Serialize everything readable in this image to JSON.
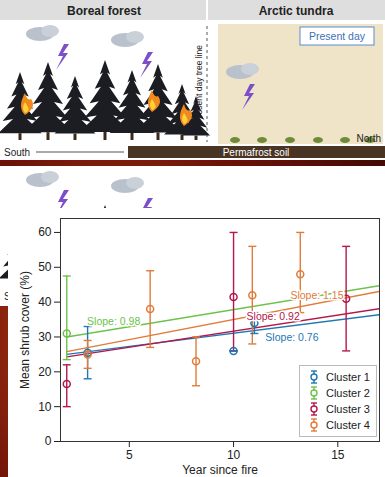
{
  "diagram": {
    "top_panel": {
      "headers": [
        "Boreal forest",
        "Arctic tundra"
      ],
      "tree_line_label": "Present day tree line",
      "period_label": "Present day",
      "soil_label": "Permafrost soil",
      "left_label": "South",
      "right_label": "North"
    },
    "bottom_panel": {
      "left_label": "South"
    }
  },
  "chart_data": {
    "type": "scatter",
    "x_label": "Year since fire",
    "y_label": "Mean shrub cover (%)",
    "xlim": [
      1.7,
      17
    ],
    "xticks": [
      5,
      10,
      15
    ],
    "ylim": [
      0,
      64
    ],
    "yticks": [
      0,
      10,
      20,
      30,
      40,
      50,
      60
    ],
    "grid": false,
    "legend": "bottom-right",
    "marker": "circle",
    "series": [
      {
        "name": "Cluster 1",
        "color": "#1f77b4",
        "x": [
          3,
          10,
          11
        ],
        "values": [
          25.5,
          26,
          34
        ],
        "error_low": [
          18,
          26,
          31
        ],
        "error_high": [
          33,
          26,
          37
        ],
        "trend_x": [
          2,
          17
        ],
        "trend_values": [
          25.0,
          36.4
        ],
        "slope": 0.76,
        "slope_label": "Slope: 0.76",
        "line_style": "dashed"
      },
      {
        "name": "Cluster 2",
        "color": "#6cc24a",
        "x": [
          2
        ],
        "values": [
          31
        ],
        "error_low": [
          23.5
        ],
        "error_high": [
          47.5
        ],
        "trend_x": [
          2,
          17
        ],
        "trend_values": [
          30.0,
          44.7
        ],
        "slope": 0.98,
        "slope_label": "Slope: 0.98",
        "line_style": "dashed"
      },
      {
        "name": "Cluster 3",
        "color": "#b5174a",
        "x": [
          2,
          10,
          15.4
        ],
        "values": [
          16.5,
          41.5,
          41
        ],
        "error_low": [
          10,
          26,
          26
        ],
        "error_high": [
          22,
          60,
          56
        ],
        "trend_x": [
          2,
          17
        ],
        "trend_values": [
          24.3,
          38.1
        ],
        "slope": 0.92,
        "slope_label": "Slope: 0.92",
        "line_style": "dashed"
      },
      {
        "name": "Cluster 4",
        "color": "#e07b39",
        "x": [
          3,
          6,
          8.2,
          10.9,
          13.2
        ],
        "values": [
          25,
          38,
          23,
          42,
          48
        ],
        "error_low": [
          21,
          27,
          16,
          28,
          37
        ],
        "error_high": [
          29,
          49,
          30,
          56,
          60
        ],
        "trend_x": [
          2,
          17
        ],
        "trend_values": [
          25.8,
          43.1
        ],
        "slope": 1.15,
        "slope_label": "Slope: 1.15",
        "line_style": "dashed"
      }
    ]
  }
}
